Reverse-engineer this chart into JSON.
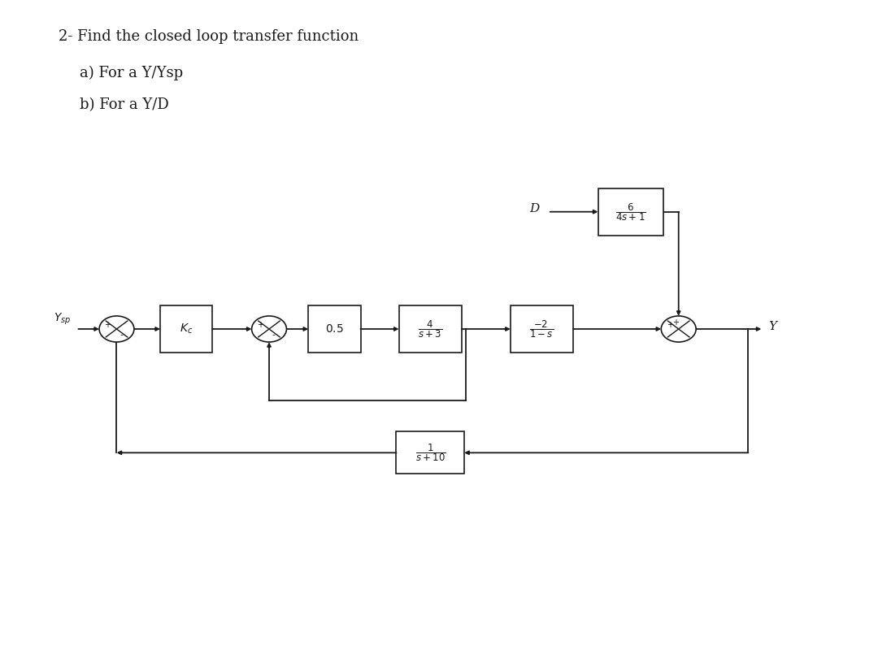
{
  "title_line1": "2- Find the closed loop transfer function",
  "title_line2": "a) For a Y/Ysp",
  "title_line3": "b) For a Y/D",
  "bg_color": "#ffffff",
  "text_color": "#1a1a1a",
  "line_color": "#1a1a1a",
  "box_color": "#ffffff",
  "box_edge": "#1a1a1a"
}
